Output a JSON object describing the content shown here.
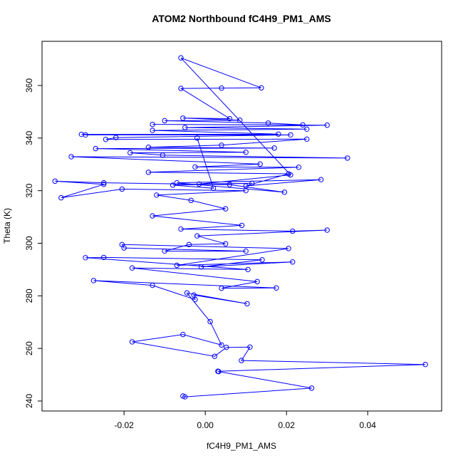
{
  "chart_data": {
    "type": "line",
    "markers": true,
    "color": "#0000ff",
    "title": "ATOM2 Northbound fC4H9_PM1_AMS",
    "x_label": "fC4H9_PM1_AMS",
    "y_label": "Theta (K)",
    "xlim": [
      -0.0402,
      0.0582
    ],
    "ylim": [
      236.2,
      376.8
    ],
    "xticks": [
      -0.02,
      {
        "value": 0,
        "label": "0.00"
      },
      0.02,
      0.04
    ],
    "yticks": [
      240,
      260,
      280,
      300,
      320,
      340,
      360
    ],
    "x": [
      -0.0055,
      -0.005,
      0.0262,
      0.0033,
      0.0031,
      0.0542,
      0.0089,
      0.011,
      0.0052,
      0.0023,
      -0.018,
      -0.0055,
      0.004,
      0.0012,
      -0.0045,
      0.0103,
      -0.0028,
      -0.0025,
      -0.013,
      -0.0275,
      0.0175,
      0.004,
      0.0128,
      -0.018,
      0.0105,
      -0.0295,
      -0.025,
      0.014,
      -0.001,
      0.0215,
      -0.007,
      0.0205,
      -0.0205,
      -0.02,
      0.01,
      -0.01,
      -0.004,
      0.005,
      -0.002,
      0.03,
      0.0215,
      -0.006,
      0.009,
      -0.013,
      0.005,
      -0.0035,
      -0.012,
      0.01,
      -0.0205,
      -0.0355,
      -0.025,
      -0.037,
      -0.025,
      0.006,
      0.0195,
      -0.007,
      0.0285,
      0.01,
      0.0205,
      -0.014,
      0.023,
      -0.0025,
      0.0135,
      -0.033,
      0.035,
      -0.0105,
      -0.0185,
      0.01,
      -0.027,
      0.017,
      -0.014,
      0.004,
      0.025,
      -0.0245,
      -0.022,
      0.021,
      -0.0295,
      -0.0305,
      0.018,
      -0.013,
      0.025,
      -0.005,
      0.03,
      -0.013,
      0.024,
      0.0155,
      -0.01,
      0.0085,
      -0.0055,
      0.006,
      -0.006,
      0.004,
      0.0138,
      -0.006,
      0.021,
      -0.0015,
      0.0115,
      -0.008,
      0.002,
      -0.002
    ],
    "values": [
      241.9,
      241.6,
      244.9,
      251.2,
      251.3,
      253.9,
      255.4,
      260.5,
      260.4,
      257.0,
      262.5,
      265.3,
      261.3,
      270.2,
      281.1,
      277.0,
      280.3,
      278.6,
      284.0,
      285.8,
      283.0,
      282.9,
      285.4,
      290.6,
      290.0,
      294.5,
      294.6,
      293.7,
      291.0,
      292.9,
      291.6,
      298.0,
      299.5,
      298.2,
      297.0,
      297.0,
      299.5,
      299.8,
      302.8,
      305.0,
      304.6,
      305.4,
      306.8,
      310.4,
      313.1,
      316.3,
      318.3,
      320.0,
      320.6,
      317.3,
      322.4,
      323.6,
      323.0,
      322.3,
      319.4,
      323.0,
      324.2,
      321.8,
      326.4,
      327.0,
      328.9,
      329.0,
      330.1,
      332.9,
      332.4,
      333.5,
      334.4,
      334.6,
      336.0,
      336.2,
      336.5,
      337.3,
      339.6,
      339.5,
      340.2,
      341.2,
      341.2,
      341.4,
      341.5,
      342.9,
      343.4,
      344.0,
      344.9,
      345.2,
      345.0,
      345.7,
      346.6,
      346.8,
      347.6,
      347.4,
      358.9,
      359.0,
      359.1,
      370.5,
      326.0,
      322.5,
      322.8,
      322.1,
      320.9,
      340.0
    ]
  }
}
